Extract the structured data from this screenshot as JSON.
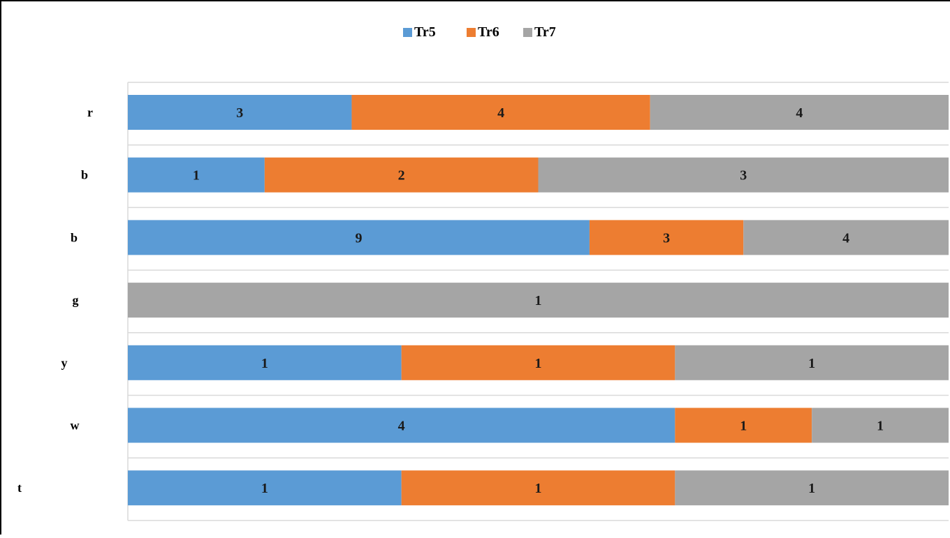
{
  "chart_data": {
    "type": "bar",
    "orientation": "horizontal",
    "stacking": "percent",
    "categories": [
      "r",
      "b",
      "b",
      "g",
      "y",
      "w",
      "t"
    ],
    "series": [
      {
        "name": "Tr5",
        "color": "#5b9bd5",
        "values": [
          3,
          1,
          9,
          0,
          1,
          4,
          1
        ]
      },
      {
        "name": "Tr6",
        "color": "#ed7d31",
        "values": [
          4,
          2,
          3,
          0,
          1,
          1,
          1
        ]
      },
      {
        "name": "Tr7",
        "color": "#a5a5a5",
        "values": [
          4,
          3,
          4,
          1,
          1,
          1,
          1
        ]
      }
    ],
    "data_labels": true,
    "legend_position": "top",
    "grid": true,
    "title": "",
    "xlabel": "",
    "ylabel": ""
  }
}
